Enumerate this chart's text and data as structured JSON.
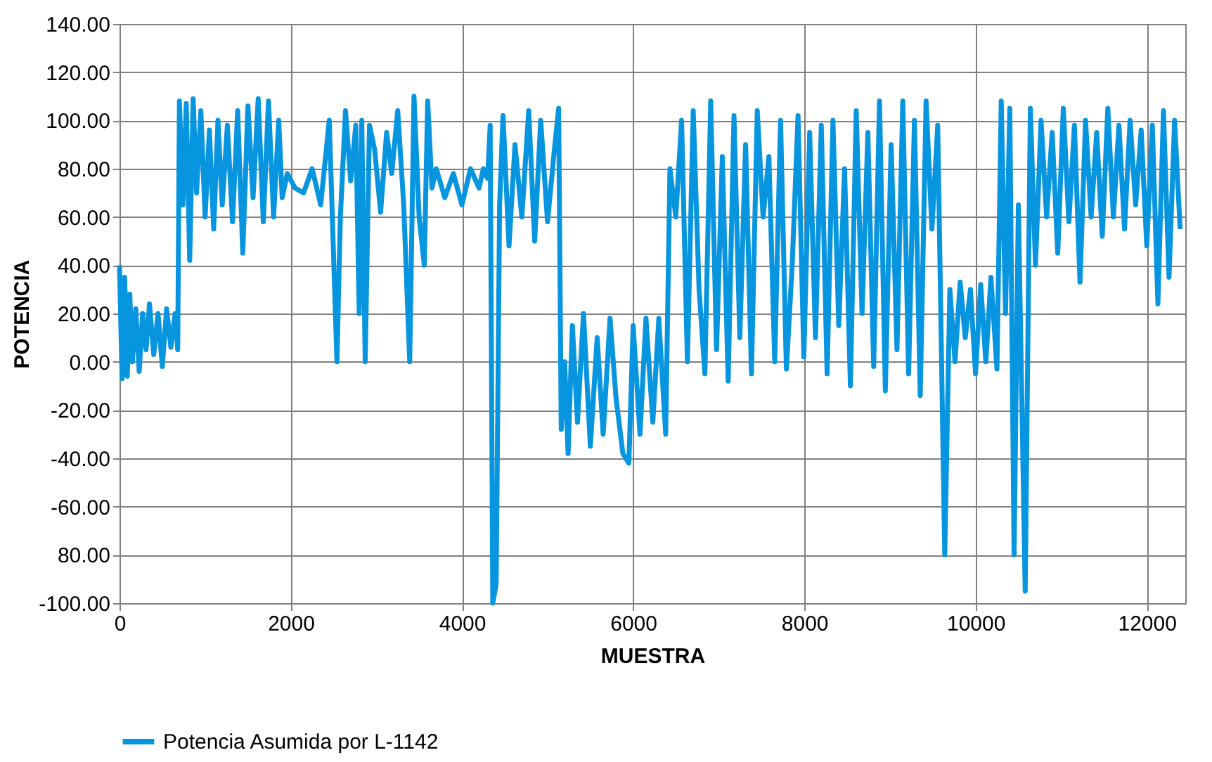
{
  "chart_data": {
    "type": "line",
    "xlabel": "MUESTRA",
    "ylabel": "POTENCIA",
    "xlim": [
      0,
      12450
    ],
    "ylim": [
      -100,
      140
    ],
    "xticks": [
      0,
      2000,
      4000,
      6000,
      8000,
      10000,
      12000
    ],
    "yticks": [
      {
        "value": 140,
        "label": "140.00"
      },
      {
        "value": 120,
        "label": "120.00"
      },
      {
        "value": 100,
        "label": "100.00"
      },
      {
        "value": 80,
        "label": "80.00"
      },
      {
        "value": 60,
        "label": "60.00"
      },
      {
        "value": 40,
        "label": "40.00"
      },
      {
        "value": 20,
        "label": "20.00"
      },
      {
        "value": 0,
        "label": "0.00"
      },
      {
        "value": -20,
        "label": "-20.00"
      },
      {
        "value": -40,
        "label": "-40.00"
      },
      {
        "value": -60,
        "label": "-60.00"
      },
      {
        "value": -80,
        "label": "80.00"
      },
      {
        "value": -100,
        "label": "-100.00"
      }
    ],
    "grid": true,
    "legend": "bottom",
    "marker": "none",
    "line_style": "solid",
    "series": [
      {
        "name": "Potencia Asumida por L-1142",
        "color": "#0895e0",
        "x": [
          0,
          30,
          60,
          90,
          120,
          150,
          190,
          230,
          270,
          310,
          350,
          400,
          450,
          500,
          550,
          600,
          650,
          680,
          700,
          740,
          780,
          820,
          860,
          900,
          950,
          1000,
          1050,
          1100,
          1150,
          1200,
          1260,
          1320,
          1380,
          1440,
          1500,
          1560,
          1620,
          1680,
          1740,
          1800,
          1860,
          1900,
          1960,
          2050,
          2150,
          2250,
          2350,
          2450,
          2540,
          2580,
          2640,
          2700,
          2760,
          2800,
          2830,
          2870,
          2920,
          2980,
          3050,
          3120,
          3180,
          3250,
          3320,
          3390,
          3440,
          3500,
          3560,
          3600,
          3650,
          3700,
          3800,
          3900,
          4000,
          4100,
          4200,
          4250,
          4300,
          4330,
          4360,
          4400,
          4440,
          4480,
          4550,
          4620,
          4700,
          4780,
          4850,
          4920,
          5000,
          5080,
          5130,
          5160,
          5200,
          5240,
          5290,
          5350,
          5420,
          5500,
          5580,
          5650,
          5730,
          5800,
          5880,
          5950,
          6000,
          6080,
          6150,
          6230,
          6300,
          6380,
          6430,
          6498,
          6566,
          6634,
          6702,
          6770,
          6838,
          6906,
          6974,
          7042,
          7110,
          7178,
          7246,
          7314,
          7382,
          7450,
          7518,
          7586,
          7654,
          7722,
          7790,
          7858,
          7926,
          7994,
          8062,
          8130,
          8198,
          8266,
          8334,
          8402,
          8470,
          8538,
          8606,
          8674,
          8742,
          8810,
          8878,
          8946,
          9014,
          9082,
          9150,
          9218,
          9286,
          9354,
          9422,
          9490,
          9558,
          9640,
          9700,
          9760,
          9820,
          9880,
          9940,
          10000,
          10060,
          10120,
          10180,
          10250,
          10300,
          10350,
          10400,
          10450,
          10500,
          10580,
          10640,
          10700,
          10765,
          10830,
          10895,
          10960,
          11025,
          11090,
          11155,
          11220,
          11285,
          11350,
          11415,
          11480,
          11545,
          11610,
          11675,
          11740,
          11805,
          11870,
          11935,
          12000,
          12065,
          12130,
          12195,
          12260,
          12325,
          12390
        ],
        "values": [
          40,
          -7,
          35,
          -6,
          28,
          0,
          22,
          -4,
          20,
          5,
          24,
          3,
          20,
          -2,
          22,
          6,
          20,
          5,
          108,
          65,
          107,
          42,
          109,
          70,
          104,
          60,
          96,
          55,
          100,
          65,
          98,
          58,
          104,
          45,
          106,
          68,
          109,
          58,
          108,
          60,
          100,
          68,
          78,
          72,
          70,
          80,
          65,
          100,
          0,
          60,
          104,
          75,
          98,
          20,
          100,
          0,
          98,
          88,
          62,
          95,
          78,
          104,
          65,
          0,
          110,
          60,
          40,
          108,
          72,
          80,
          68,
          78,
          65,
          80,
          72,
          80,
          76,
          98,
          -100,
          -92,
          65,
          102,
          48,
          90,
          60,
          104,
          50,
          100,
          58,
          88,
          105,
          -28,
          0,
          -38,
          15,
          -25,
          20,
          -35,
          10,
          -30,
          18,
          -15,
          -38,
          -42,
          15,
          -30,
          18,
          -25,
          18,
          -30,
          80,
          60,
          100,
          0,
          104,
          30,
          -5,
          108,
          5,
          85,
          -8,
          102,
          10,
          90,
          -5,
          104,
          60,
          85,
          0,
          100,
          -3,
          40,
          102,
          2,
          95,
          10,
          98,
          -5,
          100,
          15,
          80,
          -10,
          104,
          20,
          95,
          -2,
          108,
          -12,
          90,
          5,
          108,
          -5,
          100,
          -14,
          108,
          55,
          98,
          -80,
          30,
          0,
          33,
          10,
          30,
          -5,
          32,
          0,
          35,
          -3,
          108,
          20,
          105,
          -80,
          65,
          -95,
          105,
          40,
          100,
          60,
          95,
          45,
          105,
          58,
          98,
          33,
          100,
          60,
          95,
          52,
          105,
          60,
          98,
          55,
          100,
          65,
          96,
          48,
          98,
          24,
          104,
          35,
          100,
          55
        ]
      }
    ]
  }
}
